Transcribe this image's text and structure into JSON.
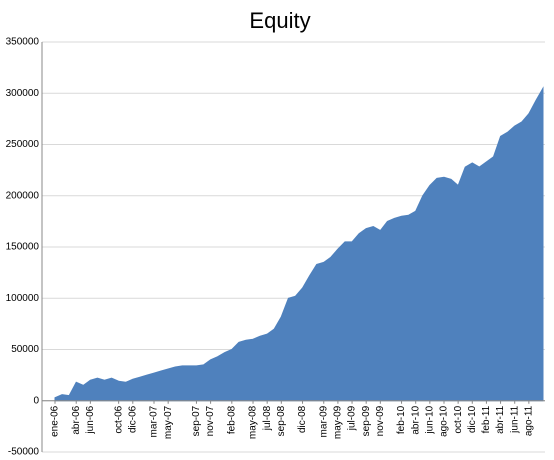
{
  "chart_data": {
    "type": "area",
    "title": "Equity",
    "color": "#4f81bd",
    "grid": true,
    "categories": [
      "ene-06",
      null,
      null,
      "abr-06",
      null,
      "jun-06",
      null,
      null,
      null,
      "oct-06",
      null,
      "dic-06",
      null,
      null,
      "mar-07",
      null,
      "may-07",
      null,
      null,
      null,
      "sep-07",
      null,
      "nov-07",
      null,
      null,
      "feb-08",
      null,
      null,
      "may-08",
      null,
      "jul-08",
      null,
      "sep-08",
      null,
      null,
      "dic-08",
      null,
      null,
      "mar-09",
      null,
      "may-09",
      null,
      "jul-09",
      null,
      "sep-09",
      null,
      "nov-09",
      null,
      null,
      "feb-10",
      null,
      "abr-10",
      null,
      "jun-10",
      null,
      "ago-10",
      null,
      "oct-10",
      null,
      "dic-10",
      null,
      "feb-11",
      null,
      "abr-11",
      null,
      "jun-11",
      null,
      "ago-11",
      null,
      null
    ],
    "values": [
      3000,
      6000,
      5000,
      18000,
      15000,
      20000,
      22000,
      20000,
      22000,
      19000,
      18000,
      21000,
      23000,
      25000,
      27000,
      29000,
      31000,
      33000,
      34000,
      34000,
      34000,
      35000,
      40000,
      43000,
      47000,
      50000,
      57000,
      59000,
      60000,
      63000,
      65000,
      70000,
      82000,
      100000,
      102000,
      110000,
      122000,
      133000,
      135000,
      140000,
      148000,
      155000,
      155000,
      163000,
      168000,
      170000,
      166000,
      175000,
      178000,
      180000,
      181000,
      185000,
      200000,
      210000,
      217000,
      218000,
      216000,
      210000,
      228000,
      232000,
      228000,
      233000,
      238000,
      258000,
      262000,
      268000,
      272000,
      280000,
      293000,
      305000
    ],
    "ylim": [
      -50000,
      350000
    ],
    "yticks": [
      -50000,
      0,
      50000,
      100000,
      150000,
      200000,
      250000,
      300000,
      350000
    ]
  }
}
